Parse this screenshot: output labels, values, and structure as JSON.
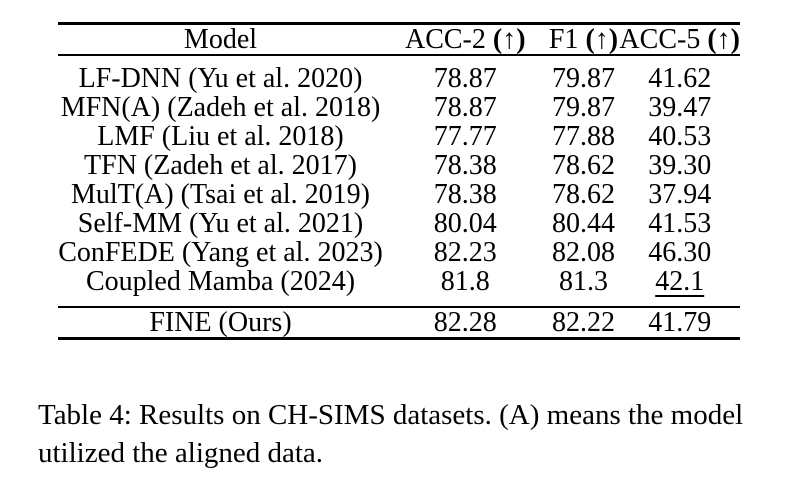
{
  "table": {
    "headers": [
      {
        "name": "Model",
        "arrow": ""
      },
      {
        "name": "ACC-2",
        "arrow": "(↑)"
      },
      {
        "name": "F1",
        "arrow": "(↑)"
      },
      {
        "name": "ACC-5",
        "arrow": "(↑)"
      }
    ],
    "rows": [
      {
        "model": "LF-DNN (Yu et al. 2020)",
        "acc2": "78.87",
        "f1": "79.87",
        "acc5": "41.62"
      },
      {
        "model": "MFN(A) (Zadeh et al. 2018)",
        "acc2": "78.87",
        "f1": "79.87",
        "acc5": "39.47"
      },
      {
        "model": "LMF (Liu et al. 2018)",
        "acc2": "77.77",
        "f1": "77.88",
        "acc5": "40.53"
      },
      {
        "model": "TFN (Zadeh et al. 2017)",
        "acc2": "78.38",
        "f1": "78.62",
        "acc5": "39.30"
      },
      {
        "model": "MulT(A) (Tsai et al. 2019)",
        "acc2": "78.38",
        "f1": "78.62",
        "acc5": "37.94"
      },
      {
        "model": "Self-MM (Yu et al. 2021)",
        "acc2": "80.04",
        "f1": "80.44",
        "acc5": "41.53"
      },
      {
        "model": "ConFEDE (Yang et al. 2023)",
        "acc2": "82.23",
        "f1": "82.08",
        "acc5": "46.30"
      },
      {
        "model": "Coupled Mamba (2024)",
        "acc2": "81.8",
        "f1": "81.3",
        "acc5": "42.1"
      }
    ],
    "footer_row": {
      "model": "FINE (Ours)",
      "acc2": "82.28",
      "f1": "82.22",
      "acc5": "41.79"
    }
  },
  "caption": {
    "lines": [
      "Table 4: Results on CH-SIMS datasets. (A) means the model",
      "utilized the aligned data."
    ]
  }
}
